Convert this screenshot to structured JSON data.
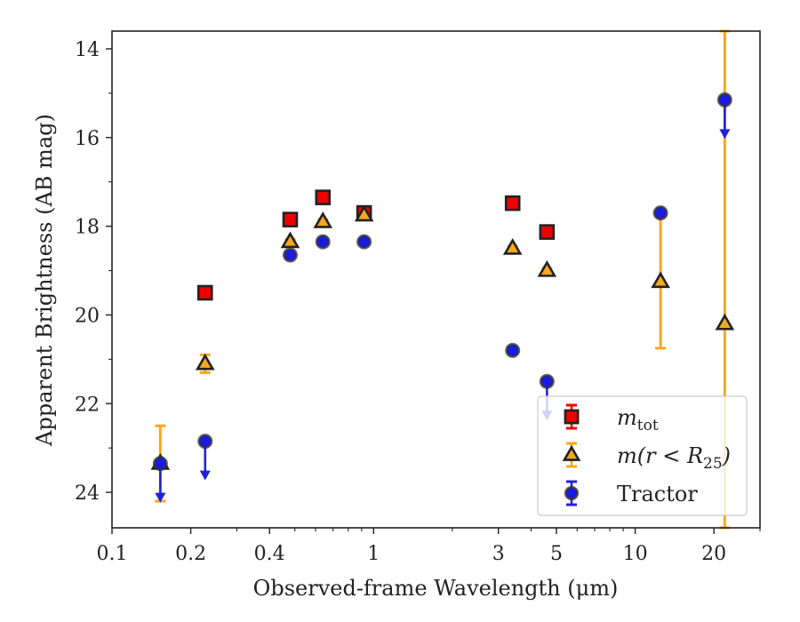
{
  "chart_data": {
    "type": "scatter",
    "xlabel": "Observed-frame Wavelength (μm)",
    "ylabel": "Apparent Brightness (AB mag)",
    "xscale": "log",
    "xlim": [
      0.1,
      30
    ],
    "ylim": [
      24.8,
      13.6
    ],
    "y_inverted": true,
    "grid": false,
    "legend_position": "lower-right",
    "x_ticks": [
      {
        "value": 0.1,
        "label": "0.1"
      },
      {
        "value": 0.2,
        "label": "0.2"
      },
      {
        "value": 0.4,
        "label": "0.4"
      },
      {
        "value": 1,
        "label": "1"
      },
      {
        "value": 3,
        "label": "3"
      },
      {
        "value": 5,
        "label": "5"
      },
      {
        "value": 10,
        "label": "10"
      },
      {
        "value": 20,
        "label": "20"
      }
    ],
    "y_ticks": [
      {
        "value": 14,
        "label": "14"
      },
      {
        "value": 16,
        "label": "16"
      },
      {
        "value": 18,
        "label": "18"
      },
      {
        "value": 20,
        "label": "20"
      },
      {
        "value": 22,
        "label": "22"
      },
      {
        "value": 24,
        "label": "24"
      }
    ],
    "series": [
      {
        "name": "m_tot",
        "marker": "square",
        "color": "#ee0000",
        "errcolor": "#ee0000",
        "points": [
          {
            "x": 0.227,
            "y": 19.5,
            "err": 0.05
          },
          {
            "x": 0.48,
            "y": 17.85,
            "err": 0.05
          },
          {
            "x": 0.64,
            "y": 17.35,
            "err": 0.05
          },
          {
            "x": 0.92,
            "y": 17.7,
            "err": 0.05
          },
          {
            "x": 3.4,
            "y": 17.48,
            "err": 0.05
          },
          {
            "x": 4.6,
            "y": 18.13,
            "err": 0.05
          }
        ]
      },
      {
        "name": "m(r < R25)",
        "marker": "triangle",
        "color": "#f5a81c",
        "errcolor": "#f5a81c",
        "points": [
          {
            "x": 0.153,
            "y": 23.35,
            "err_lo": 0.85,
            "err_hi": 0.85
          },
          {
            "x": 0.227,
            "y": 21.1,
            "err_lo": 0.2,
            "err_hi": 0.2
          },
          {
            "x": 0.48,
            "y": 18.35,
            "err": 0.05
          },
          {
            "x": 0.64,
            "y": 17.9,
            "err": 0.05
          },
          {
            "x": 0.92,
            "y": 17.75,
            "err": 0.05
          },
          {
            "x": 3.4,
            "y": 18.5,
            "err": 0.05
          },
          {
            "x": 4.6,
            "y": 19.0,
            "err": 0.05
          },
          {
            "x": 12.5,
            "y": 19.25,
            "err_lo": 1.5,
            "err_hi": 1.5
          },
          {
            "x": 22.0,
            "y": 20.2,
            "err_lo": 7.0,
            "err_hi": 7.0
          }
        ]
      },
      {
        "name": "Tractor",
        "marker": "circle",
        "color": "#1a1ae6",
        "errcolor": "#2222dd",
        "points": [
          {
            "x": 0.153,
            "y": 23.35,
            "upper_limit": true
          },
          {
            "x": 0.227,
            "y": 22.85,
            "upper_limit": true
          },
          {
            "x": 0.48,
            "y": 18.65,
            "err": 0.05
          },
          {
            "x": 0.64,
            "y": 18.35,
            "err": 0.05
          },
          {
            "x": 0.92,
            "y": 18.35,
            "err": 0.05
          },
          {
            "x": 3.4,
            "y": 20.8,
            "err": 0.05
          },
          {
            "x": 4.6,
            "y": 21.5,
            "upper_limit": true
          },
          {
            "x": 12.5,
            "y": 17.7,
            "err": 0.05
          },
          {
            "x": 22.0,
            "y": 15.15,
            "upper_limit": true
          }
        ]
      }
    ],
    "legend": [
      {
        "marker": "square",
        "color": "#ee0000",
        "errcolor": "#ee0000",
        "label_base": "m",
        "label_sub": "tot",
        "label_tail": ""
      },
      {
        "marker": "triangle",
        "color": "#f5a81c",
        "errcolor": "#f5a81c",
        "label_base": "m(r < R",
        "label_sub": "25",
        "label_tail": ")"
      },
      {
        "marker": "circle",
        "color": "#1a1ae6",
        "errcolor": "#2222dd",
        "label_base": "Tractor",
        "label_sub": "",
        "label_tail": ""
      }
    ]
  }
}
